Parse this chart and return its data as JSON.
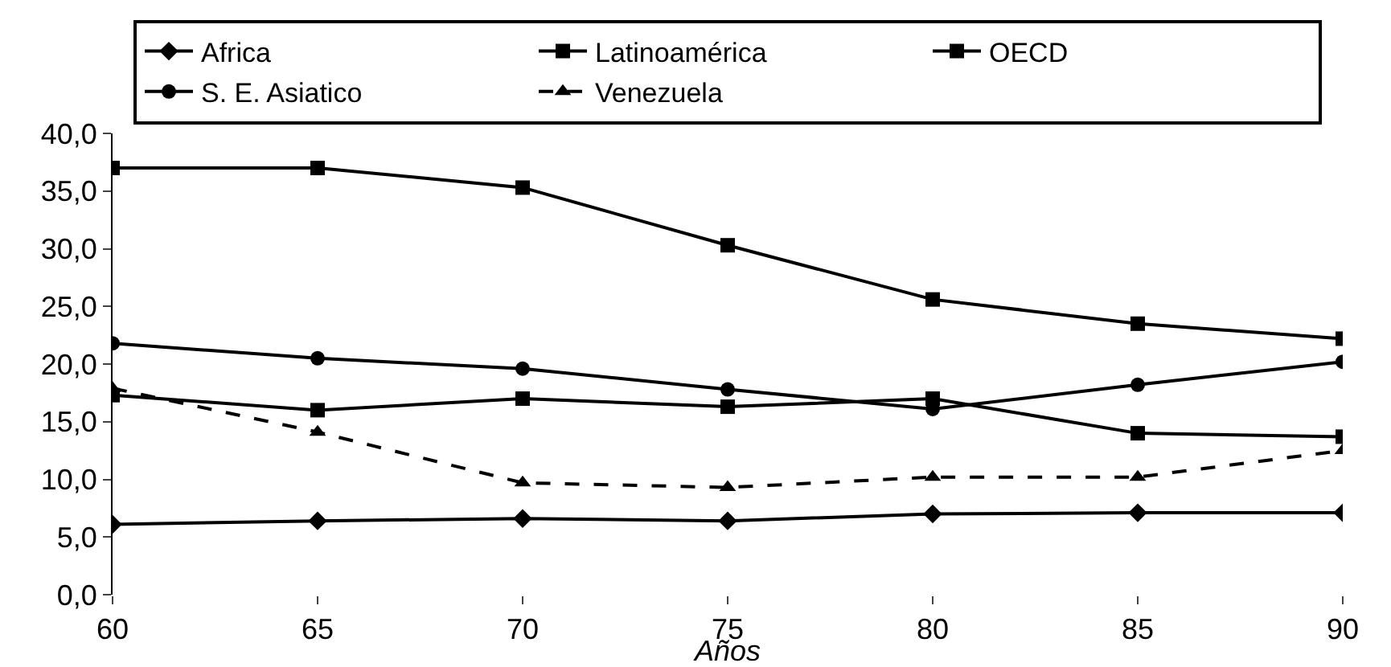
{
  "chart_data": {
    "type": "line",
    "xlabel": "Años",
    "x": [
      60,
      65,
      70,
      75,
      80,
      85,
      90
    ],
    "xlim": [
      60,
      90
    ],
    "xticks": [
      60,
      65,
      70,
      75,
      80,
      85,
      90
    ],
    "ylim": [
      0,
      40
    ],
    "yticks": [
      {
        "value": 0,
        "label": "0,0"
      },
      {
        "value": 5,
        "label": "5,0"
      },
      {
        "value": 10,
        "label": "10,0"
      },
      {
        "value": 15,
        "label": "15,0"
      },
      {
        "value": 20,
        "label": "20,0"
      },
      {
        "value": 25,
        "label": "25,0"
      },
      {
        "value": 30,
        "label": "30,0"
      },
      {
        "value": 35,
        "label": "35,0"
      },
      {
        "value": 40,
        "label": "40,0"
      }
    ],
    "legend": "top",
    "grid": false,
    "series": [
      {
        "name": "Africa",
        "color": "#000000",
        "marker": "diamond",
        "line_style": "solid",
        "values": [
          6.1,
          6.4,
          6.6,
          6.4,
          7.0,
          7.1,
          7.1
        ]
      },
      {
        "name": "Latinoamérica",
        "color": "#000000",
        "marker": "square",
        "line_style": "solid",
        "values": [
          17.3,
          16.0,
          17.0,
          16.3,
          17.0,
          14.0,
          13.7
        ]
      },
      {
        "name": "OECD",
        "color": "#000000",
        "marker": "square",
        "line_style": "solid",
        "values": [
          37.0,
          37.0,
          35.3,
          30.3,
          25.6,
          23.5,
          22.2
        ]
      },
      {
        "name": "S. E. Asiatico",
        "color": "#000000",
        "marker": "circle",
        "line_style": "solid",
        "values": [
          21.8,
          20.5,
          19.6,
          17.8,
          16.1,
          18.2,
          20.2
        ]
      },
      {
        "name": "Venezuela",
        "color": "#000000",
        "marker": "triangle",
        "line_style": "dashed",
        "values": [
          17.9,
          14.1,
          9.7,
          9.3,
          10.2,
          10.2,
          12.5
        ]
      }
    ]
  }
}
